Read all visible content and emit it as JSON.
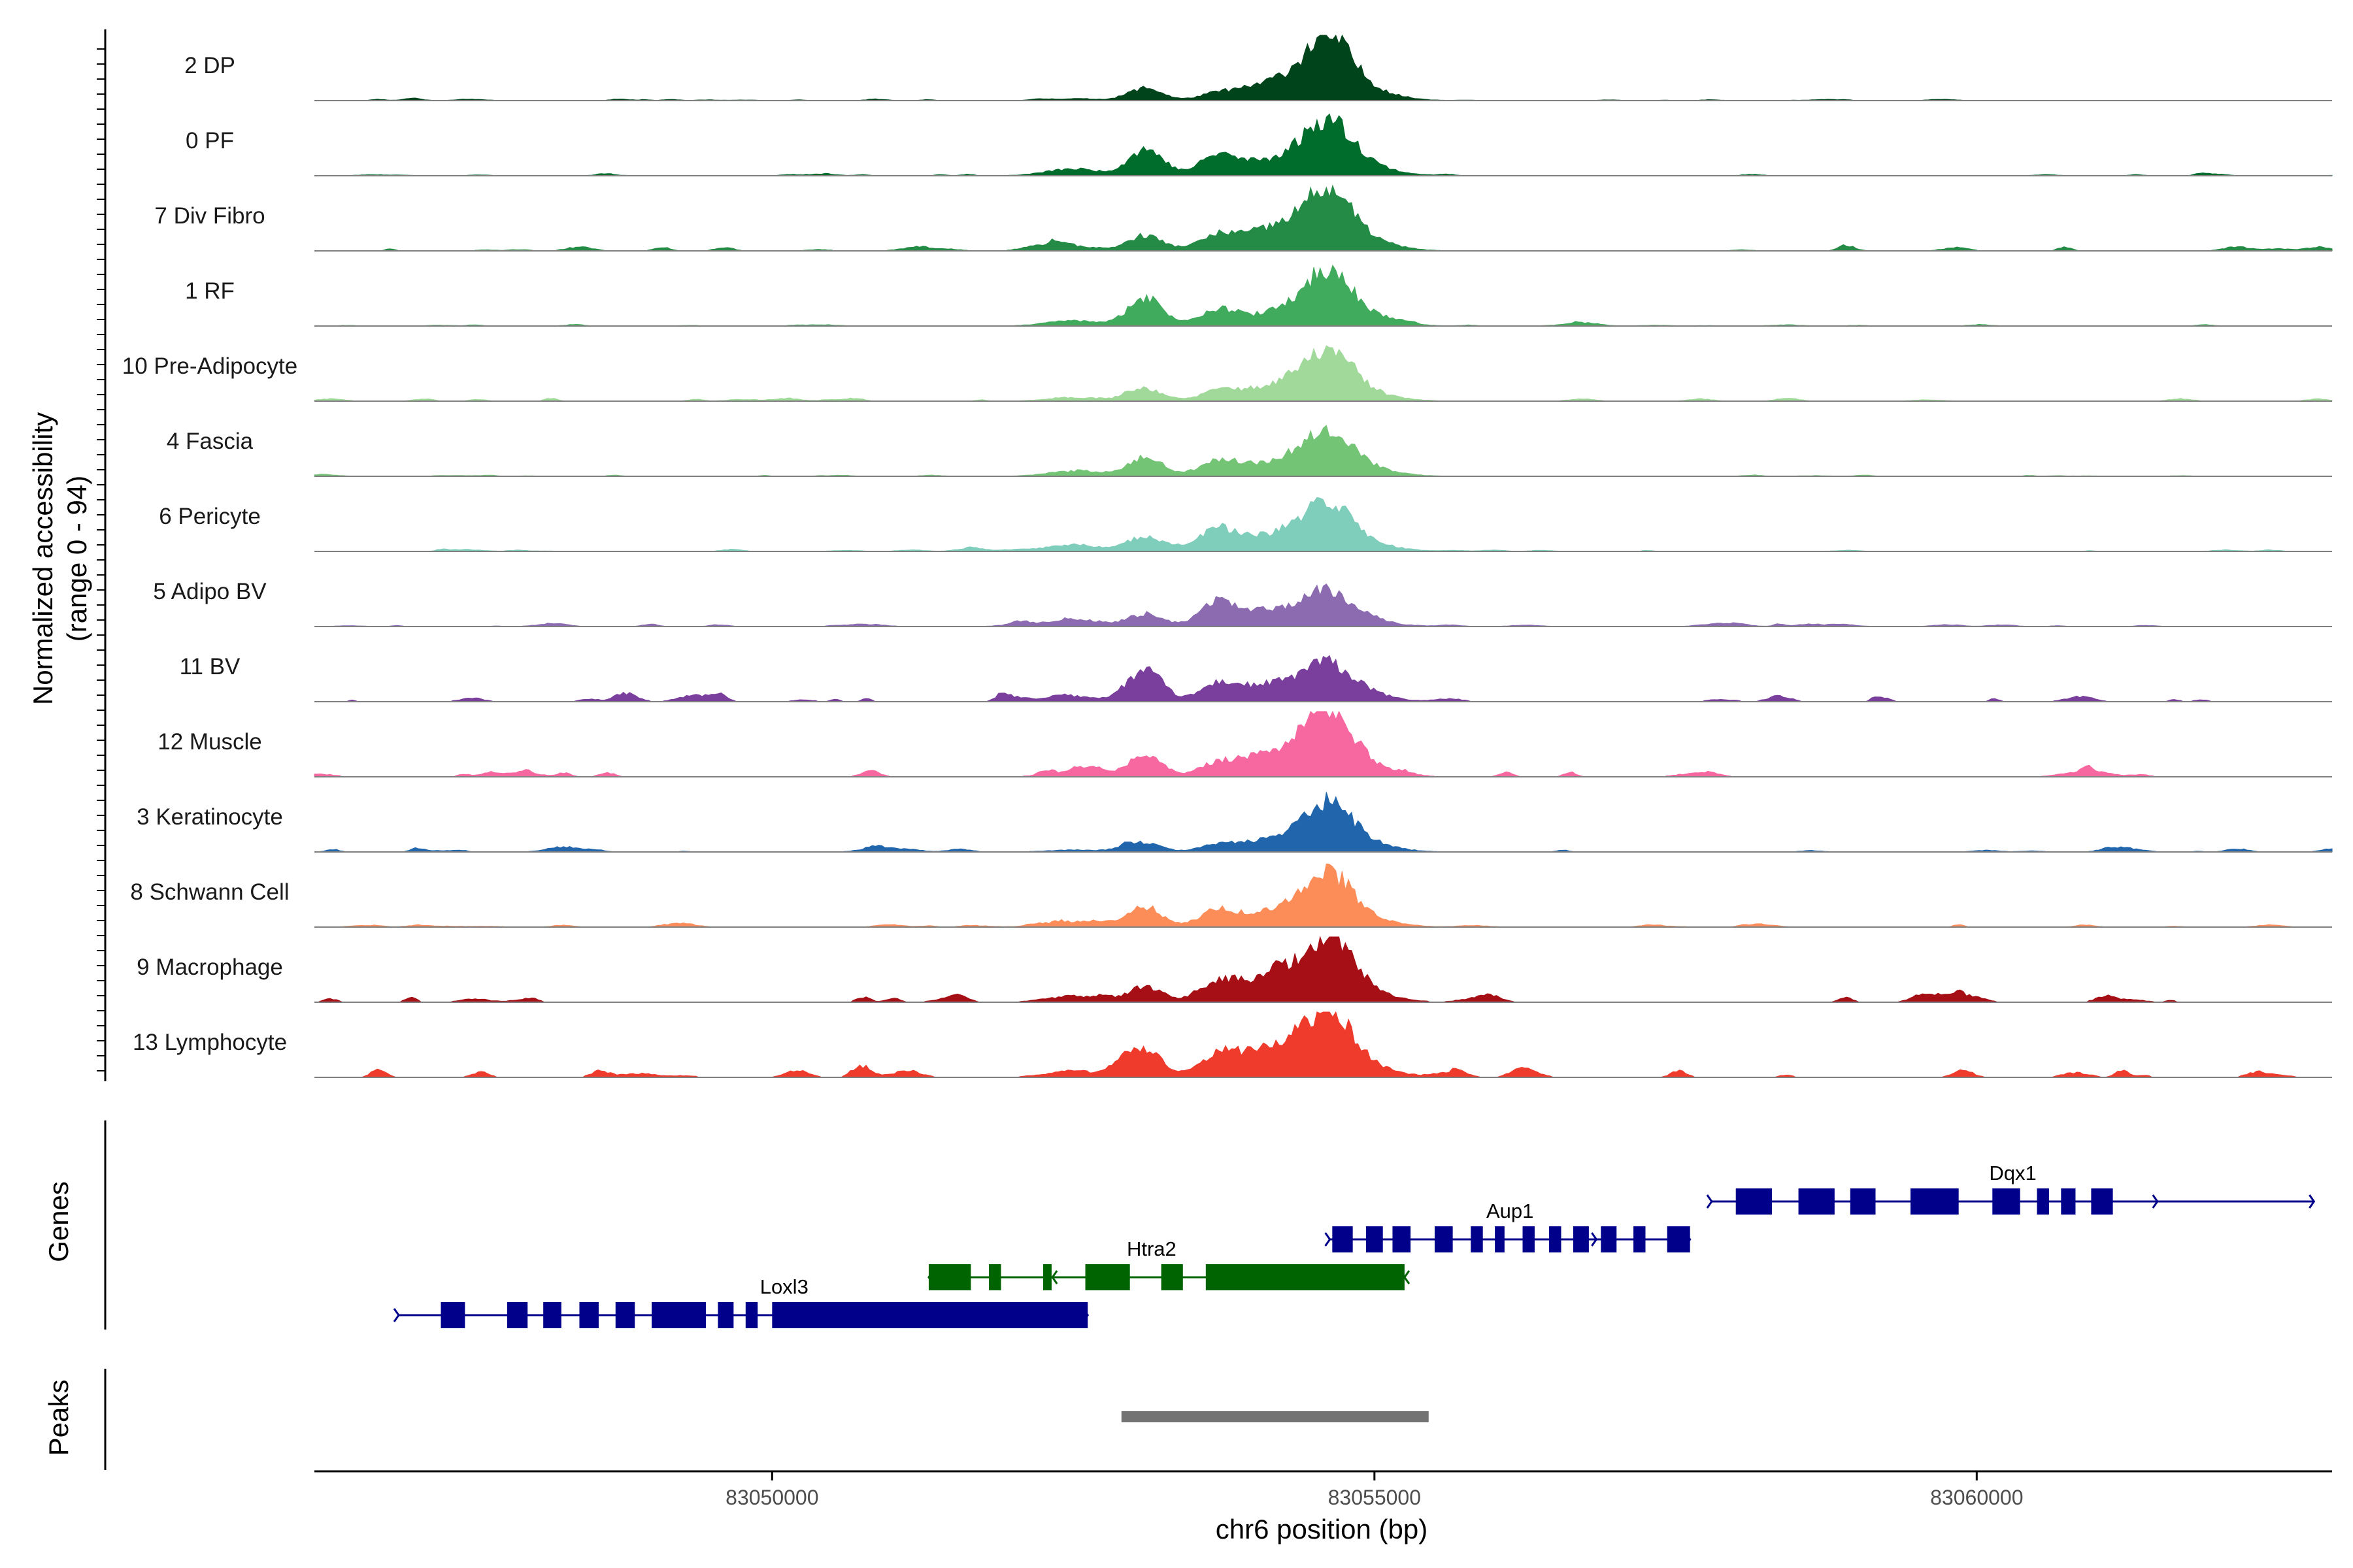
{
  "chart_data": {
    "type": "area",
    "title": "",
    "chromosome": "chr6",
    "xlabel": "chr6 position (bp)",
    "xlim": [
      83046200,
      83062950
    ],
    "x_ticks": [
      83050000,
      83055000,
      83060000
    ],
    "ylabel_line1": "Normalized accessibility",
    "ylabel_line2": "(range 0 - 94)",
    "ylim": [
      0,
      94
    ],
    "panel_labels": {
      "genes": "Genes",
      "peaks": "Peaks"
    },
    "series": [
      {
        "name": "2 DP",
        "color": "#00441B",
        "main": 92,
        "sub": 18,
        "flank": 8,
        "shoulder": 14,
        "bg": 0.4,
        "seed": 11
      },
      {
        "name": "0 PF",
        "color": "#006D2C",
        "main": 80,
        "sub": 38,
        "flank": 28,
        "shoulder": 10,
        "bg": 0.5,
        "seed": 23
      },
      {
        "name": "7 Div Fibro",
        "color": "#238B45",
        "main": 88,
        "sub": 22,
        "flank": 18,
        "shoulder": 20,
        "bg": 1.2,
        "seed": 37
      },
      {
        "name": "1 RF",
        "color": "#41AB5D",
        "main": 80,
        "sub": 40,
        "flank": 22,
        "shoulder": 8,
        "bg": 0.4,
        "seed": 41
      },
      {
        "name": "10 Pre-Adipocyte",
        "color": "#A1D99B",
        "main": 72,
        "sub": 18,
        "flank": 12,
        "shoulder": 12,
        "bg": 1.0,
        "seed": 53
      },
      {
        "name": "4 Fascia",
        "color": "#74C476",
        "main": 68,
        "sub": 28,
        "flank": 20,
        "shoulder": 12,
        "bg": 0.4,
        "seed": 67
      },
      {
        "name": "6 Pericyte",
        "color": "#7FCDBB",
        "main": 70,
        "sub": 22,
        "flank": 28,
        "shoulder": 14,
        "bg": 0.6,
        "seed": 71
      },
      {
        "name": "5 Adipo BV",
        "color": "#8C6BB1",
        "main": 52,
        "sub": 18,
        "flank": 32,
        "shoulder": 16,
        "bg": 0.8,
        "seed": 83
      },
      {
        "name": "11 BV",
        "color": "#7A3E9D",
        "main": 52,
        "sub": 45,
        "flank": 22,
        "shoulder": 18,
        "bg": 2.0,
        "seed": 97
      },
      {
        "name": "12 Muscle",
        "color": "#F768A1",
        "main": 94,
        "sub": 30,
        "flank": 16,
        "shoulder": 22,
        "bg": 1.5,
        "seed": 101
      },
      {
        "name": "3 Keratinocyte",
        "color": "#2166AC",
        "main": 72,
        "sub": 12,
        "flank": 8,
        "shoulder": 10,
        "bg": 1.0,
        "seed": 113
      },
      {
        "name": "8 Schwann Cell",
        "color": "#FC8D59",
        "main": 78,
        "sub": 28,
        "flank": 22,
        "shoulder": 12,
        "bg": 0.8,
        "seed": 127
      },
      {
        "name": "9 Macrophage",
        "color": "#A50F15",
        "main": 86,
        "sub": 22,
        "flank": 25,
        "shoulder": 24,
        "bg": 2.0,
        "seed": 131
      },
      {
        "name": "13 Lymphocyte",
        "color": "#EF3B2C",
        "main": 94,
        "sub": 40,
        "flank": 26,
        "shoulder": 30,
        "bg": 2.2,
        "seed": 149
      }
    ],
    "genes": [
      {
        "name": "Loxl3",
        "strand": "+",
        "start": 83046900,
        "end": 83052620,
        "color": "#00008B",
        "exons": [
          [
            83047250,
            83047450
          ],
          [
            83047800,
            83047970
          ],
          [
            83048100,
            83048250
          ],
          [
            83048400,
            83048560
          ],
          [
            83048700,
            83048860
          ],
          [
            83049000,
            83049450
          ],
          [
            83049550,
            83049680
          ],
          [
            83049780,
            83049880
          ],
          [
            83050000,
            83052620
          ]
        ]
      },
      {
        "name": "Htra2",
        "strand": "-",
        "start": 83051300,
        "end": 83055250,
        "color": "#006400",
        "exons": [
          [
            83051300,
            83051650
          ],
          [
            83051800,
            83051900
          ],
          [
            83052250,
            83052320
          ],
          [
            83052600,
            83052970
          ],
          [
            83053230,
            83053410
          ],
          [
            83053600,
            83055250
          ]
        ]
      },
      {
        "name": "Aup1",
        "strand": "+",
        "start": 83054630,
        "end": 83057620,
        "color": "#00008B",
        "exons": [
          [
            83054650,
            83054820
          ],
          [
            83054930,
            83055070
          ],
          [
            83055150,
            83055300
          ],
          [
            83055500,
            83055650
          ],
          [
            83055800,
            83055900
          ],
          [
            83056000,
            83056080
          ],
          [
            83056230,
            83056330
          ],
          [
            83056450,
            83056550
          ],
          [
            83056650,
            83056780
          ],
          [
            83056880,
            83057010
          ],
          [
            83057150,
            83057250
          ],
          [
            83057430,
            83057620
          ]
        ]
      },
      {
        "name": "Dqx1",
        "strand": "+",
        "start": 83057800,
        "end": 83062800,
        "color": "#00008B",
        "exons": [
          [
            83058000,
            83058300
          ],
          [
            83058520,
            83058820
          ],
          [
            83058950,
            83059160
          ],
          [
            83059450,
            83059850
          ],
          [
            83060130,
            83060360
          ],
          [
            83060500,
            83060600
          ],
          [
            83060700,
            83060820
          ],
          [
            83060950,
            83061130
          ]
        ]
      }
    ],
    "peaks": [
      {
        "start": 83052900,
        "end": 83055450,
        "color": "#737373"
      }
    ]
  }
}
